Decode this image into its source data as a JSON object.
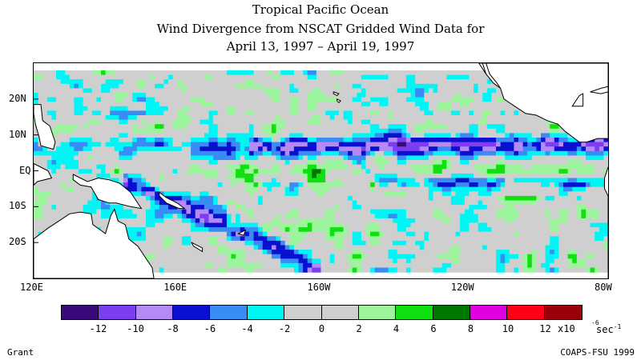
{
  "title": "Tropical Pacific Ocean",
  "subtitle": "Wind Divergence from NSCAT Gridded Wind Data for",
  "date_range": "April 13, 1997 – April 19, 1997",
  "map": {
    "lon_range": [
      120,
      280
    ],
    "lat_range": [
      -30,
      30
    ],
    "lat_labels": [
      {
        "label": "20N",
        "lat": 20
      },
      {
        "label": "10N",
        "lat": 10
      },
      {
        "label": "EQ",
        "lat": 0
      },
      {
        "label": "10S",
        "lat": -10
      },
      {
        "label": "20S",
        "lat": -20
      }
    ],
    "lon_labels": [
      {
        "label": "120E",
        "lon": 120
      },
      {
        "label": "160E",
        "lon": 160
      },
      {
        "label": "160W",
        "lon": 200
      },
      {
        "label": "120W",
        "lon": 240
      },
      {
        "label": "80W",
        "lon": 280
      }
    ],
    "land_color": "#ffffff",
    "coast_color": "#000000"
  },
  "colorbar": {
    "colors": [
      "#3a0a7a",
      "#7b3ff0",
      "#b58af5",
      "#0a10d0",
      "#3a8cf5",
      "#00f5f5",
      "#cfcfcf",
      "#cfcfcf",
      "#9cf59c",
      "#10e010",
      "#007800",
      "#e000e0",
      "#ff0018",
      "#9a0008"
    ],
    "tick_labels": [
      "-12",
      "-10",
      "-8",
      "-6",
      "-4",
      "-2",
      "0",
      "2",
      "4",
      "6",
      "8",
      "10",
      "12"
    ],
    "unit_base": "x10",
    "unit_exp": "-6",
    "unit_tail": "sec",
    "unit_tail_exp": "-1"
  },
  "credits": {
    "left": "Grant",
    "right": "COAPS-FSU 1999"
  }
}
